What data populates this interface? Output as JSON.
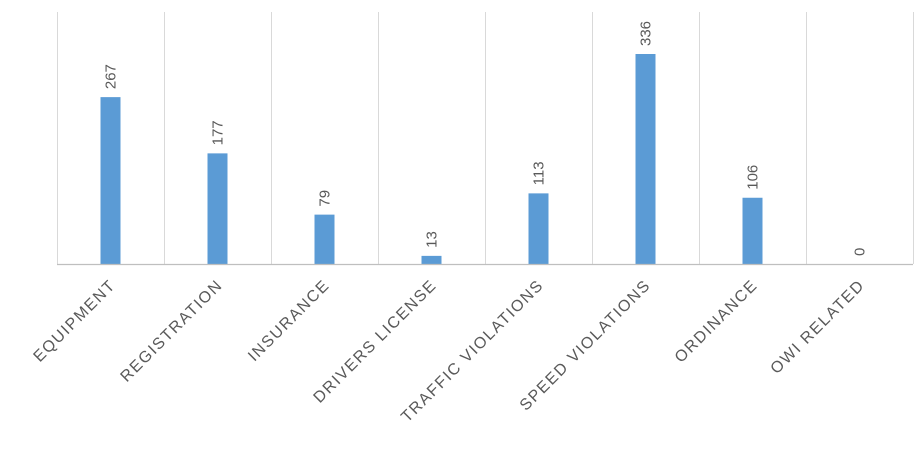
{
  "chart_data": {
    "type": "bar",
    "title": "",
    "xlabel": "",
    "ylabel": "",
    "categories": [
      "EQUIPMENT",
      "REGISTRATION",
      "INSURANCE",
      "DRIVERS LICENSE",
      "TRAFFIC VIOLATIONS",
      "SPEED VIOLATIONS",
      "ORDINANCE",
      "OWI RELATED"
    ],
    "values": [
      267,
      177,
      79,
      13,
      113,
      336,
      106,
      0
    ],
    "data_labels": [
      "267",
      "177",
      "79",
      "13",
      "113",
      "336",
      "106",
      "0"
    ],
    "ylim": [
      0,
      336
    ],
    "grid": "vertical category separators",
    "legend": "none",
    "colors": {
      "bar": "#5b9bd5",
      "text": "#595959",
      "grid": "#d9d9d9"
    }
  }
}
